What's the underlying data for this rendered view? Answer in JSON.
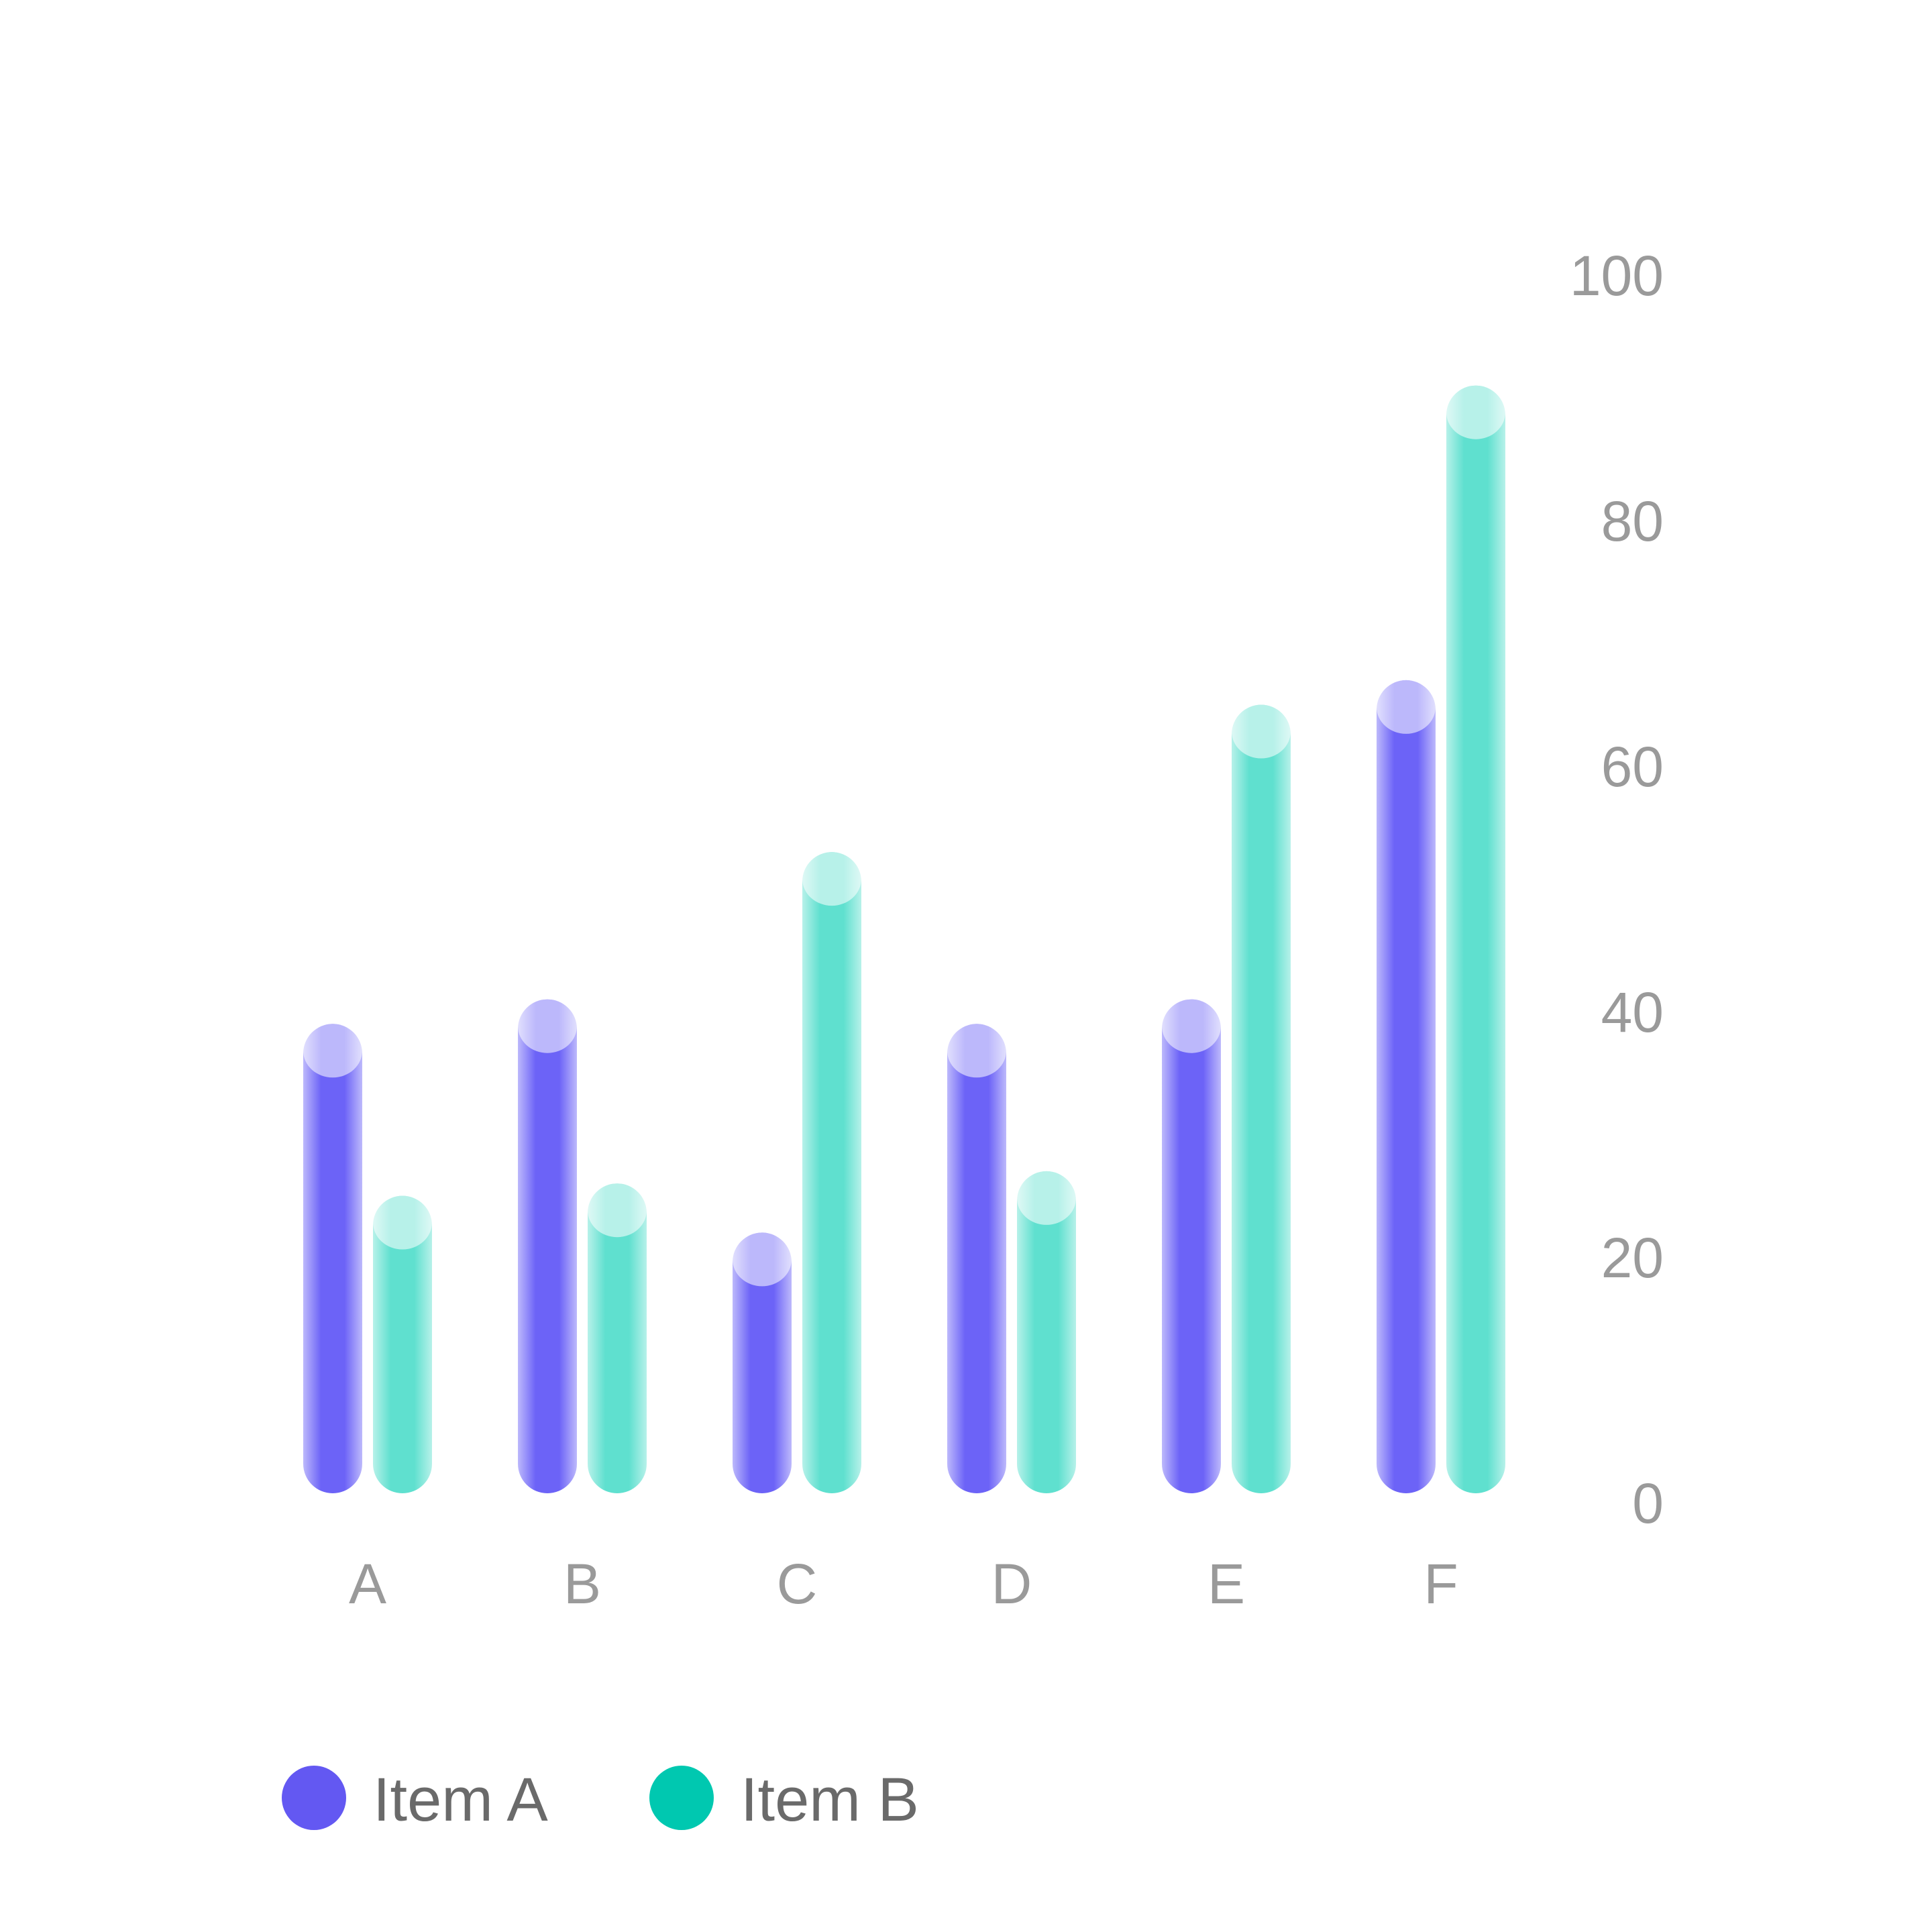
{
  "chart_data": {
    "type": "bar",
    "categories": [
      "A",
      "B",
      "C",
      "D",
      "E",
      "F"
    ],
    "series": [
      {
        "name": "Item A",
        "color": "#6c63f7",
        "values": [
          39,
          41,
          22,
          39,
          41,
          67
        ]
      },
      {
        "name": "Item B",
        "color": "#5fe0cf",
        "values": [
          25,
          26,
          53,
          27,
          65,
          91
        ]
      }
    ],
    "y_ticks": [
      "0",
      "20",
      "40",
      "60",
      "80",
      "100"
    ],
    "ylim": [
      0,
      100
    ],
    "y_axis_position": "right",
    "grid": false,
    "legend_position": "bottom-left",
    "legend": [
      {
        "label": "Item A",
        "color": "#6358f2"
      },
      {
        "label": "Item B",
        "color": "#00c8b0"
      }
    ]
  }
}
